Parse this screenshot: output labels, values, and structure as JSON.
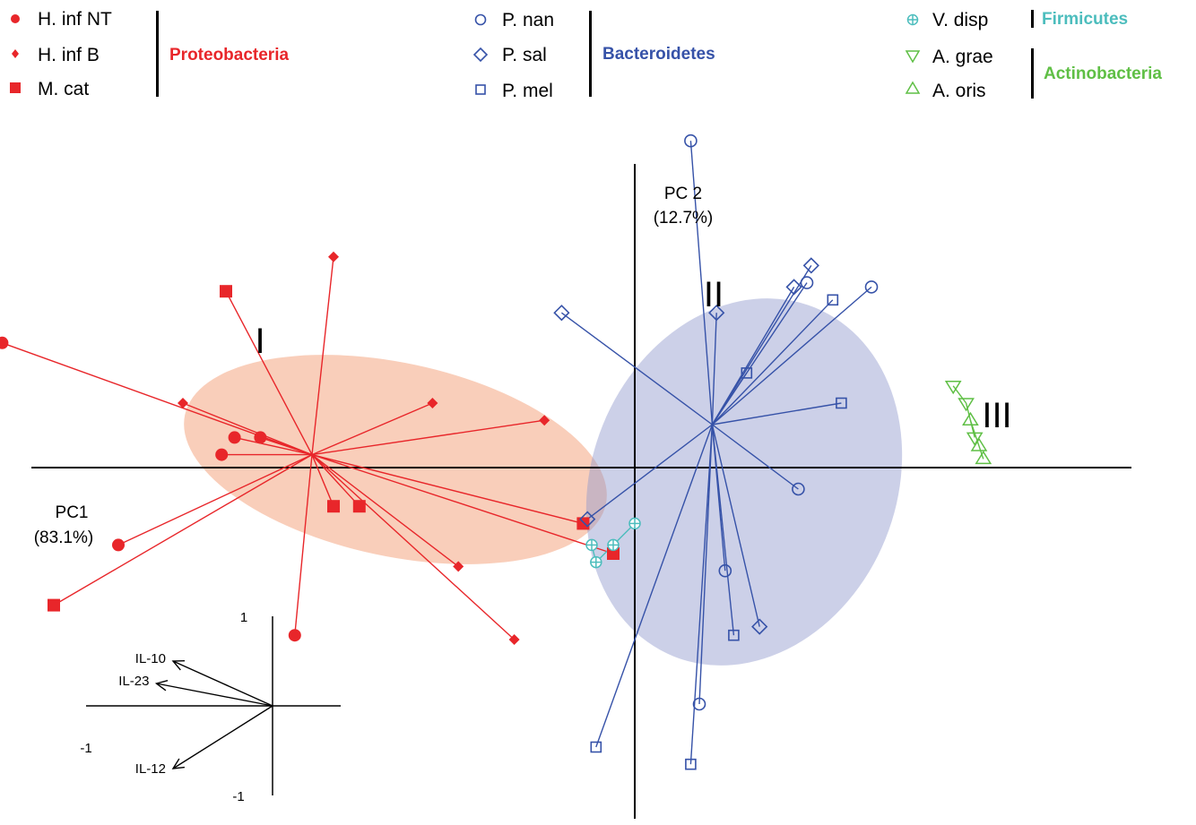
{
  "chart_data": {
    "type": "scatter",
    "axes": {
      "pc1_label": "PC1",
      "pc1_pct": "(83.1%)",
      "pc2_label": "PC 2",
      "pc2_pct": "(12.7%)"
    },
    "clusters": [
      {
        "name": "I",
        "color": "#f4a582"
      },
      {
        "name": "II",
        "color": "#8e96cc"
      },
      {
        "name": "III",
        "color": "#000000"
      }
    ],
    "legend": {
      "groups": [
        {
          "phylum": "Proteobacteria",
          "color": "#e8262a",
          "items": [
            {
              "label": "H. inf NT",
              "marker": "circle-filled"
            },
            {
              "label": "H. inf B",
              "marker": "diamond-filled"
            },
            {
              "label": "M. cat",
              "marker": "square-filled"
            }
          ]
        },
        {
          "phylum": "Bacteroidetes",
          "color": "#3652a8",
          "items": [
            {
              "label": "P. nan",
              "marker": "circle-open"
            },
            {
              "label": "P. sal",
              "marker": "diamond-open"
            },
            {
              "label": "P. mel",
              "marker": "square-open"
            }
          ]
        },
        {
          "phylum": "Firmicutes",
          "color": "#4cbdbd",
          "items": [
            {
              "label": "V. disp",
              "marker": "circle-plus"
            }
          ]
        },
        {
          "phylum": "Actinobacteria",
          "color": "#5fbf45",
          "items": [
            {
              "label": "A. grae",
              "marker": "triangle-down-open"
            },
            {
              "label": "A. oris",
              "marker": "triangle-up-open"
            }
          ]
        }
      ]
    },
    "series": [
      {
        "name": "H. inf NT",
        "phylum": "Proteobacteria",
        "centroid": [
          -3.75,
          0.15
        ],
        "points": [
          [
            -7.35,
            1.45
          ],
          [
            -3.95,
            -1.95
          ],
          [
            -4.8,
            0.15
          ],
          [
            -4.65,
            0.35
          ],
          [
            -6.0,
            -0.9
          ],
          [
            -4.35,
            0.35
          ]
        ]
      },
      {
        "name": "H. inf B",
        "phylum": "Proteobacteria",
        "centroid": [
          -3.75,
          0.15
        ],
        "points": [
          [
            -3.5,
            2.45
          ],
          [
            -5.25,
            0.75
          ],
          [
            -2.35,
            0.75
          ],
          [
            -2.05,
            -1.15
          ],
          [
            -1.05,
            0.55
          ],
          [
            -1.4,
            -2.0
          ]
        ]
      },
      {
        "name": "M. cat",
        "phylum": "Proteobacteria",
        "centroid": [
          -3.75,
          0.15
        ],
        "points": [
          [
            -4.75,
            2.05
          ],
          [
            -3.2,
            -0.45
          ],
          [
            -0.25,
            -1.0
          ],
          [
            -3.5,
            -0.45
          ],
          [
            -6.75,
            -1.6
          ],
          [
            -0.6,
            -0.65
          ]
        ]
      },
      {
        "name": "P. nan",
        "phylum": "Bacteroidetes",
        "centroid": [
          0.9,
          0.5
        ],
        "points": [
          [
            0.65,
            3.8
          ],
          [
            0.75,
            -2.75
          ],
          [
            1.05,
            -1.2
          ],
          [
            2.0,
            2.15
          ],
          [
            2.75,
            2.1
          ],
          [
            1.9,
            -0.25
          ]
        ]
      },
      {
        "name": "P. sal",
        "phylum": "Bacteroidetes",
        "centroid": [
          0.9,
          0.5
        ],
        "points": [
          [
            1.85,
            2.1
          ],
          [
            0.95,
            1.8
          ],
          [
            -0.85,
            1.8
          ],
          [
            -0.55,
            -0.6
          ],
          [
            2.05,
            2.35
          ],
          [
            1.45,
            -1.85
          ]
        ]
      },
      {
        "name": "P. mel",
        "phylum": "Bacteroidetes",
        "centroid": [
          0.9,
          0.5
        ],
        "points": [
          [
            -0.45,
            -3.25
          ],
          [
            1.3,
            1.1
          ],
          [
            1.15,
            -1.95
          ],
          [
            2.4,
            0.75
          ],
          [
            2.3,
            1.95
          ],
          [
            0.65,
            -3.45
          ]
        ]
      },
      {
        "name": "V. disp",
        "phylum": "Firmicutes",
        "points": [
          [
            -0.5,
            -0.9
          ],
          [
            -0.45,
            -1.1
          ],
          [
            -0.25,
            -0.9
          ],
          [
            0.0,
            -0.65
          ]
        ]
      },
      {
        "name": "A. grae",
        "phylum": "Actinobacteria",
        "points": [
          [
            3.7,
            0.95
          ],
          [
            3.85,
            0.75
          ],
          [
            3.95,
            0.35
          ]
        ]
      },
      {
        "name": "A. oris",
        "phylum": "Actinobacteria",
        "points": [
          [
            3.9,
            0.55
          ],
          [
            4.0,
            0.25
          ],
          [
            4.05,
            0.1
          ]
        ]
      }
    ],
    "loadings": {
      "xlim": [
        -1,
        1
      ],
      "ylim": [
        -1,
        1
      ],
      "ticks": {
        "y_top": "1",
        "y_bottom": "-1",
        "x_left": "-1"
      },
      "vectors": [
        {
          "label": "IL-10",
          "x": -0.6,
          "y": 0.5
        },
        {
          "label": "IL-23",
          "x": -0.7,
          "y": 0.25
        },
        {
          "label": "IL-12",
          "x": -0.6,
          "y": -0.7
        }
      ]
    }
  }
}
